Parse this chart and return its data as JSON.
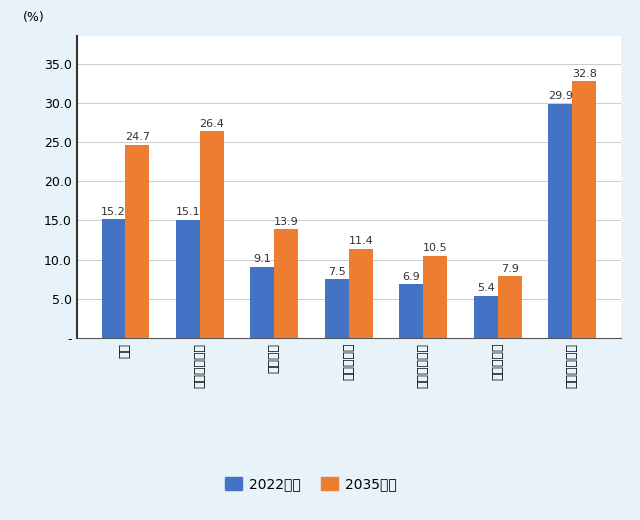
{
  "categories": [
    "タイ",
    "シンガポール",
    "ベトナム",
    "マレーシア",
    "インドネシア",
    "フィリピン",
    "（参考）日本"
  ],
  "values_2022": [
    15.2,
    15.1,
    9.1,
    7.5,
    6.9,
    5.4,
    29.9
  ],
  "values_2035": [
    24.7,
    26.4,
    13.9,
    11.4,
    10.5,
    7.9,
    32.8
  ],
  "color_2022": "#4472C4",
  "color_2035": "#ED7D31",
  "ylabel_text": "(%)",
  "yticks": [
    0,
    5.0,
    10.0,
    15.0,
    20.0,
    25.0,
    30.0,
    35.0
  ],
  "ytick_labels": [
    "-",
    "5.0",
    "10.0",
    "15.0",
    "20.0",
    "25.0",
    "30.0",
    "35.0"
  ],
  "legend_2022": "2022実績",
  "legend_2035": "2035予測",
  "background_color": "#E8F3F9",
  "plot_bg_color": "#FFFFFF",
  "bar_width": 0.32,
  "ylim": [
    0,
    38.5
  ]
}
